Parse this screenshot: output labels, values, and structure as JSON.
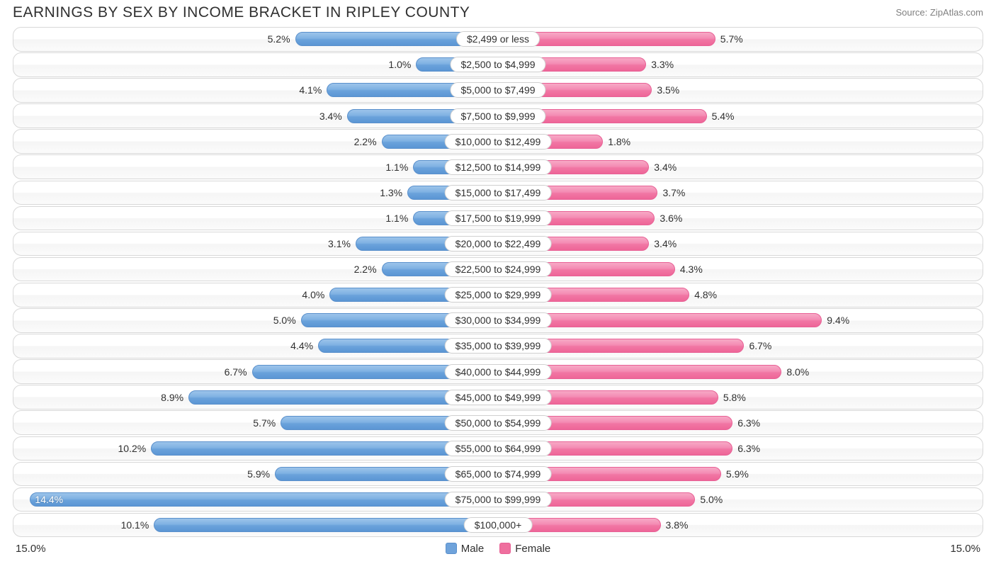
{
  "title": "EARNINGS BY SEX BY INCOME BRACKET IN RIPLEY COUNTY",
  "source": "Source: ZipAtlas.com",
  "chart": {
    "type": "diverging-bar",
    "max_pct": 15.0,
    "axis_label_left": "15.0%",
    "axis_label_right": "15.0%",
    "male_color": "#6fa3db",
    "female_color": "#ef6f9e",
    "track_border": "#d8d8d8",
    "background": "#ffffff",
    "label_fontsize": 14,
    "title_fontsize": 21,
    "legend": {
      "male": "Male",
      "female": "Female"
    },
    "rows": [
      {
        "category": "$2,499 or less",
        "male": 5.2,
        "female": 5.7
      },
      {
        "category": "$2,500 to $4,999",
        "male": 1.0,
        "female": 3.3
      },
      {
        "category": "$5,000 to $7,499",
        "male": 4.1,
        "female": 3.5
      },
      {
        "category": "$7,500 to $9,999",
        "male": 3.4,
        "female": 5.4
      },
      {
        "category": "$10,000 to $12,499",
        "male": 2.2,
        "female": 1.8
      },
      {
        "category": "$12,500 to $14,999",
        "male": 1.1,
        "female": 3.4
      },
      {
        "category": "$15,000 to $17,499",
        "male": 1.3,
        "female": 3.7
      },
      {
        "category": "$17,500 to $19,999",
        "male": 1.1,
        "female": 3.6
      },
      {
        "category": "$20,000 to $22,499",
        "male": 3.1,
        "female": 3.4
      },
      {
        "category": "$22,500 to $24,999",
        "male": 2.2,
        "female": 4.3
      },
      {
        "category": "$25,000 to $29,999",
        "male": 4.0,
        "female": 4.8
      },
      {
        "category": "$30,000 to $34,999",
        "male": 5.0,
        "female": 9.4
      },
      {
        "category": "$35,000 to $39,999",
        "male": 4.4,
        "female": 6.7
      },
      {
        "category": "$40,000 to $44,999",
        "male": 6.7,
        "female": 8.0
      },
      {
        "category": "$45,000 to $49,999",
        "male": 8.9,
        "female": 5.8
      },
      {
        "category": "$50,000 to $54,999",
        "male": 5.7,
        "female": 6.3
      },
      {
        "category": "$55,000 to $64,999",
        "male": 10.2,
        "female": 6.3
      },
      {
        "category": "$65,000 to $74,999",
        "male": 5.9,
        "female": 5.9
      },
      {
        "category": "$75,000 to $99,999",
        "male": 14.4,
        "female": 5.0
      },
      {
        "category": "$100,000+",
        "male": 10.1,
        "female": 3.8
      }
    ]
  }
}
